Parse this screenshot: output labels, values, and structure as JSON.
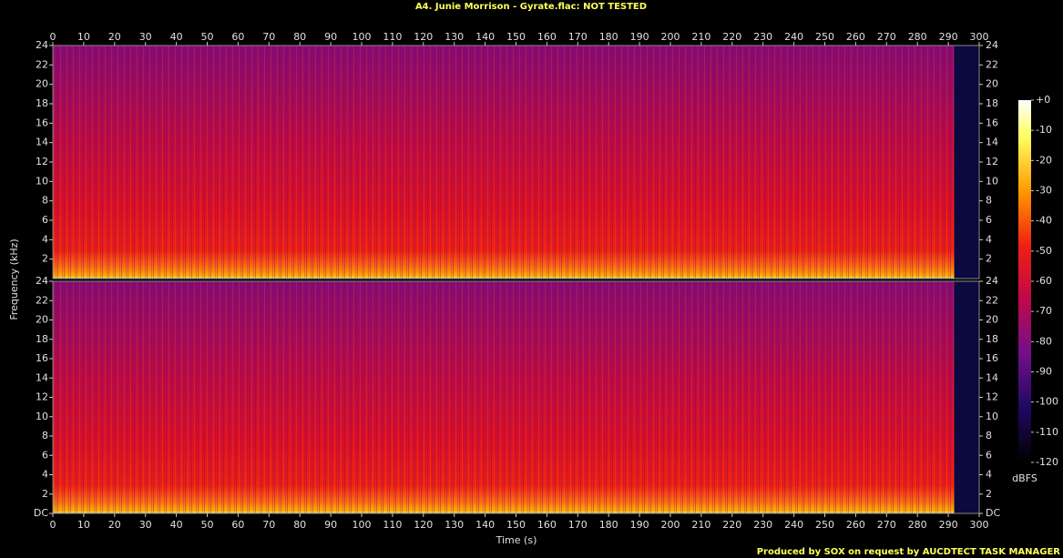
{
  "chart_data": [
    {
      "type": "spectrogram",
      "title": "A4. Junie Morrison - Gyrate.flac: NOT TESTED",
      "ylabel": "Frequency (kHz)",
      "xlim": [
        0,
        300
      ],
      "xticks": [
        0,
        10,
        20,
        30,
        40,
        50,
        60,
        70,
        80,
        90,
        100,
        110,
        120,
        130,
        140,
        150,
        160,
        170,
        180,
        190,
        200,
        210,
        220,
        230,
        240,
        250,
        260,
        270,
        280,
        290,
        300
      ],
      "ylim": [
        0,
        24
      ],
      "yticks": [
        2,
        4,
        6,
        8,
        10,
        12,
        14,
        16,
        18,
        20,
        22,
        24
      ]
    },
    {
      "type": "spectrogram",
      "xlabel": "Time (s)",
      "xlim": [
        0,
        300
      ],
      "xticks": [
        0,
        10,
        20,
        30,
        40,
        50,
        60,
        70,
        80,
        90,
        100,
        110,
        120,
        130,
        140,
        150,
        160,
        170,
        180,
        190,
        200,
        210,
        220,
        230,
        240,
        250,
        260,
        270,
        280,
        290,
        300
      ],
      "ylim": [
        0,
        24
      ],
      "yticks": [
        {
          "value": 0,
          "label": "DC"
        },
        2,
        4,
        6,
        8,
        10,
        12,
        14,
        16,
        18,
        20,
        22,
        24
      ]
    }
  ],
  "colorbar": {
    "label": "dBFS",
    "lim": [
      -120,
      0
    ],
    "ticks": [
      {
        "value": 0,
        "label": "+0"
      },
      -10,
      -20,
      -30,
      -40,
      -50,
      -60,
      -70,
      -80,
      -90,
      -100,
      -110,
      -120
    ]
  },
  "footer": "Produced by SOX on request by AUCDTECT TASK MANAGER"
}
